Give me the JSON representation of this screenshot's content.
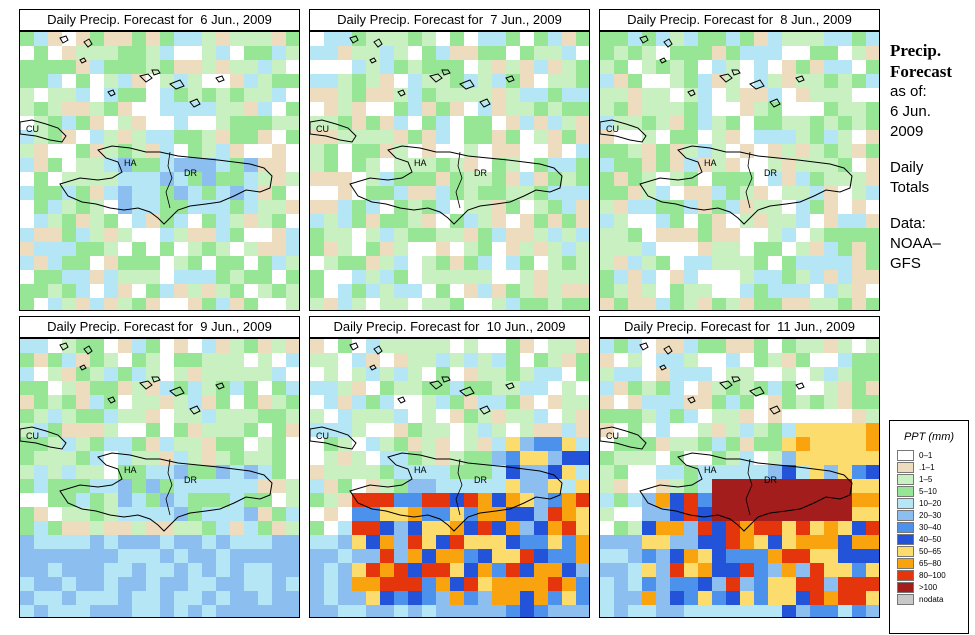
{
  "panels": [
    {
      "title": "Daily Precip. Forecast for  6 Jun., 2009",
      "seed": 11,
      "intensity": 1
    },
    {
      "title": "Daily Precip. Forecast for  7 Jun., 2009",
      "seed": 23,
      "intensity": 0
    },
    {
      "title": "Daily Precip. Forecast for  8 Jun., 2009",
      "seed": 37,
      "intensity": 0
    },
    {
      "title": "Daily Precip. Forecast for  9 Jun., 2009",
      "seed": 41,
      "intensity": 2
    },
    {
      "title": "Daily Precip. Forecast for  10 Jun., 2009",
      "seed": 53,
      "intensity": 4
    },
    {
      "title": "Daily Precip. Forecast for  11 Jun., 2009",
      "seed": 67,
      "intensity": 5
    }
  ],
  "map_labels": {
    "cuba": "CU",
    "haiti": "HA",
    "dominican_republic": "DR"
  },
  "sidebar": {
    "title_line1": "Precip.",
    "title_line2": "Forecast",
    "asof": "as of:",
    "date_line1": "6 Jun.",
    "date_line2": "2009",
    "totals_line1": "Daily",
    "totals_line2": "Totals",
    "data_line1": "Data:",
    "data_line2": "NOAA–",
    "data_line3": "GFS"
  },
  "legend": {
    "title": "PPT (mm)",
    "items": [
      {
        "label": "0–1",
        "color": "#ffffff"
      },
      {
        "label": ".1–1",
        "color": "#eedcbf"
      },
      {
        "label": "1–5",
        "color": "#c8f0c0"
      },
      {
        "label": "5–10",
        "color": "#96e696"
      },
      {
        "label": "10–20",
        "color": "#b4e6f5"
      },
      {
        "label": "20–30",
        "color": "#8cbef0"
      },
      {
        "label": "30–40",
        "color": "#4c91ec"
      },
      {
        "label": "40–50",
        "color": "#2353d8"
      },
      {
        "label": "50–65",
        "color": "#fddc6e"
      },
      {
        "label": "65–80",
        "color": "#f9a30f"
      },
      {
        "label": "80–100",
        "color": "#e5350c"
      },
      {
        "label": ">100",
        "color": "#a31d1d"
      },
      {
        "label": "nodata",
        "color": "#c8c8c8"
      }
    ]
  }
}
